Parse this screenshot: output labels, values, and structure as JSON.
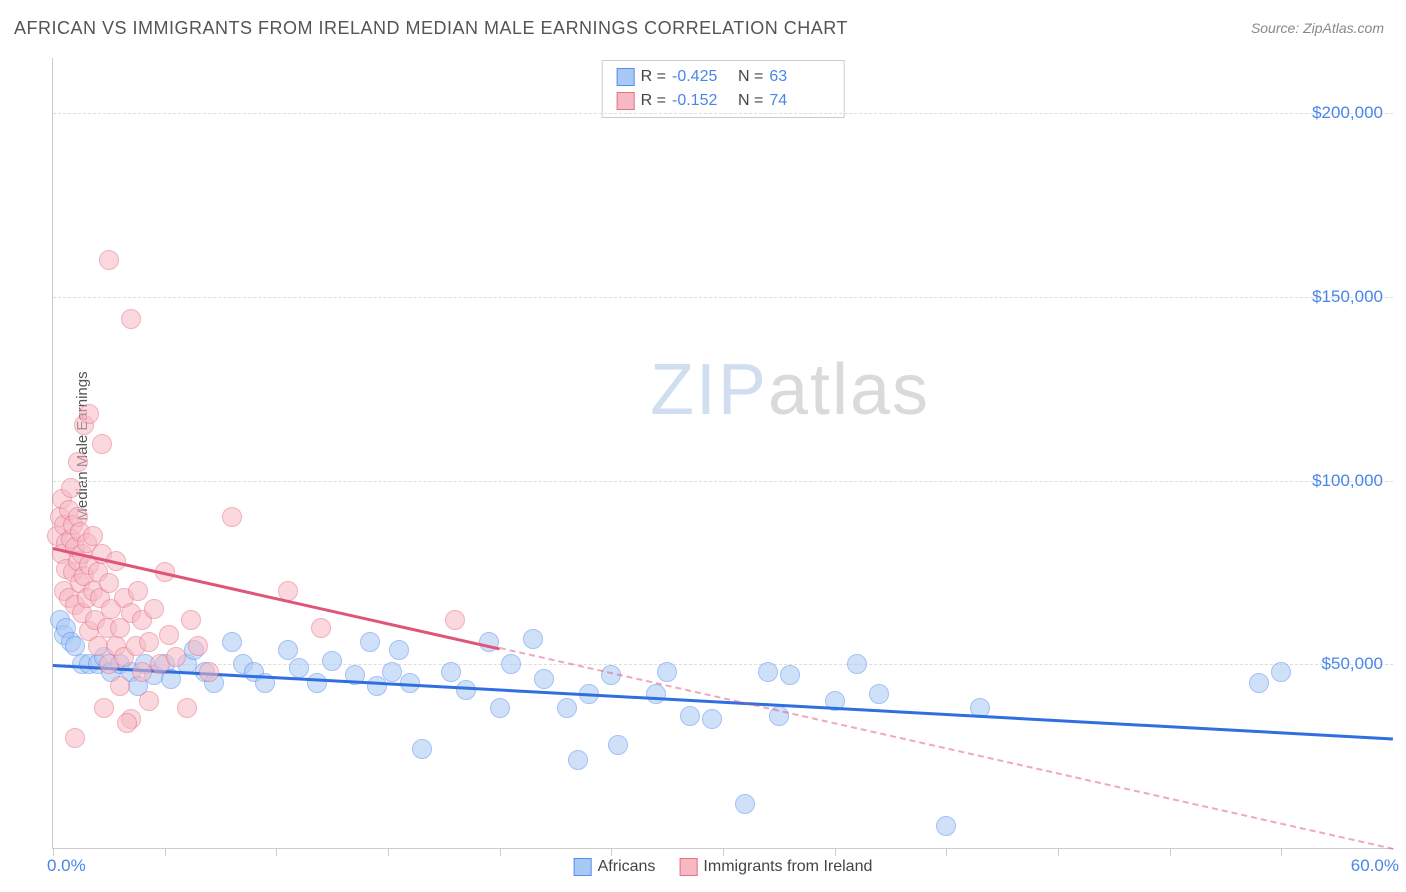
{
  "title": "AFRICAN VS IMMIGRANTS FROM IRELAND MEDIAN MALE EARNINGS CORRELATION CHART",
  "source": "Source: ZipAtlas.com",
  "ylabel": "Median Male Earnings",
  "watermark": {
    "part1": "ZIP",
    "part2": "atlas"
  },
  "chart": {
    "type": "scatter",
    "xlim": [
      0,
      60
    ],
    "ylim": [
      0,
      215000
    ],
    "x_tick_positions": [
      0,
      5,
      10,
      15,
      20,
      25,
      30,
      35,
      40,
      45,
      50,
      55
    ],
    "x_start_label": "0.0%",
    "x_end_label": "60.0%",
    "y_ticks": [
      {
        "value": 50000,
        "label": "$50,000"
      },
      {
        "value": 100000,
        "label": "$100,000"
      },
      {
        "value": 150000,
        "label": "$150,000"
      },
      {
        "value": 200000,
        "label": "$200,000"
      }
    ],
    "grid_color": "#dddddd",
    "background_color": "#ffffff",
    "point_radius": 9,
    "point_opacity": 0.55,
    "series": [
      {
        "id": "africans",
        "label": "Africans",
        "fill": "#a9c9f5",
        "stroke": "#5b8def",
        "trend_color": "#2f6fe0",
        "R": "-0.425",
        "N": "63",
        "trend": {
          "x1": 0,
          "y1": 50000,
          "x2": 60,
          "y2": 30000,
          "dash_after_x": null
        },
        "points": [
          [
            0.3,
            62000
          ],
          [
            0.5,
            58000
          ],
          [
            0.6,
            60000
          ],
          [
            0.8,
            56000
          ],
          [
            1.0,
            55000
          ],
          [
            1.3,
            50000
          ],
          [
            1.6,
            50000
          ],
          [
            2.0,
            50000
          ],
          [
            2.3,
            52000
          ],
          [
            2.6,
            48000
          ],
          [
            3.0,
            50000
          ],
          [
            3.5,
            48000
          ],
          [
            3.8,
            44000
          ],
          [
            4.1,
            50000
          ],
          [
            4.5,
            47000
          ],
          [
            5.0,
            50000
          ],
          [
            5.3,
            46000
          ],
          [
            6.0,
            50000
          ],
          [
            6.3,
            54000
          ],
          [
            6.8,
            48000
          ],
          [
            7.2,
            45000
          ],
          [
            8.0,
            56000
          ],
          [
            8.5,
            50000
          ],
          [
            9.0,
            48000
          ],
          [
            9.5,
            45000
          ],
          [
            10.5,
            54000
          ],
          [
            11.0,
            49000
          ],
          [
            11.8,
            45000
          ],
          [
            12.5,
            51000
          ],
          [
            13.5,
            47000
          ],
          [
            14.2,
            56000
          ],
          [
            14.5,
            44000
          ],
          [
            15.2,
            48000
          ],
          [
            15.5,
            54000
          ],
          [
            16.0,
            45000
          ],
          [
            16.5,
            27000
          ],
          [
            17.8,
            48000
          ],
          [
            18.5,
            43000
          ],
          [
            19.5,
            56000
          ],
          [
            20.5,
            50000
          ],
          [
            21.5,
            57000
          ],
          [
            22.0,
            46000
          ],
          [
            23.0,
            38000
          ],
          [
            23.5,
            24000
          ],
          [
            25.0,
            47000
          ],
          [
            25.3,
            28000
          ],
          [
            27.0,
            42000
          ],
          [
            27.5,
            48000
          ],
          [
            28.5,
            36000
          ],
          [
            29.5,
            35000
          ],
          [
            31.0,
            12000
          ],
          [
            32.0,
            48000
          ],
          [
            32.5,
            36000
          ],
          [
            33.0,
            47000
          ],
          [
            35.0,
            40000
          ],
          [
            36.0,
            50000
          ],
          [
            37.0,
            42000
          ],
          [
            40.0,
            6000
          ],
          [
            41.5,
            38000
          ],
          [
            54.0,
            45000
          ],
          [
            55.0,
            48000
          ],
          [
            24.0,
            42000
          ],
          [
            20.0,
            38000
          ]
        ]
      },
      {
        "id": "ireland",
        "label": "Immigrants from Ireland",
        "fill": "#f6b9c4",
        "stroke": "#e86f88",
        "trend_color": "#e05577",
        "R": "-0.152",
        "N": "74",
        "trend": {
          "x1": 0,
          "y1": 82000,
          "x2": 60,
          "y2": 0,
          "dash_after_x": 20
        },
        "points": [
          [
            0.2,
            85000
          ],
          [
            0.3,
            90000
          ],
          [
            0.4,
            80000
          ],
          [
            0.4,
            95000
          ],
          [
            0.5,
            70000
          ],
          [
            0.5,
            88000
          ],
          [
            0.6,
            83000
          ],
          [
            0.6,
            76000
          ],
          [
            0.7,
            92000
          ],
          [
            0.7,
            68000
          ],
          [
            0.8,
            84000
          ],
          [
            0.8,
            98000
          ],
          [
            0.9,
            75000
          ],
          [
            0.9,
            88000
          ],
          [
            1.0,
            82000
          ],
          [
            1.0,
            66000
          ],
          [
            1.1,
            78000
          ],
          [
            1.1,
            90000
          ],
          [
            1.2,
            72000
          ],
          [
            1.2,
            86000
          ],
          [
            1.3,
            80000
          ],
          [
            1.3,
            64000
          ],
          [
            1.4,
            74000
          ],
          [
            1.5,
            68000
          ],
          [
            1.5,
            83000
          ],
          [
            1.6,
            59000
          ],
          [
            1.6,
            77000
          ],
          [
            1.8,
            70000
          ],
          [
            1.8,
            85000
          ],
          [
            1.9,
            62000
          ],
          [
            2.0,
            75000
          ],
          [
            2.0,
            55000
          ],
          [
            2.1,
            68000
          ],
          [
            2.2,
            80000
          ],
          [
            2.3,
            38000
          ],
          [
            2.4,
            60000
          ],
          [
            2.5,
            72000
          ],
          [
            2.5,
            50000
          ],
          [
            2.6,
            65000
          ],
          [
            2.8,
            55000
          ],
          [
            2.8,
            78000
          ],
          [
            3.0,
            60000
          ],
          [
            3.0,
            44000
          ],
          [
            3.2,
            68000
          ],
          [
            3.2,
            52000
          ],
          [
            3.5,
            64000
          ],
          [
            3.5,
            35000
          ],
          [
            3.7,
            55000
          ],
          [
            3.8,
            70000
          ],
          [
            4.0,
            48000
          ],
          [
            4.0,
            62000
          ],
          [
            4.3,
            56000
          ],
          [
            4.3,
            40000
          ],
          [
            4.5,
            65000
          ],
          [
            4.8,
            50000
          ],
          [
            5.0,
            75000
          ],
          [
            5.2,
            58000
          ],
          [
            5.5,
            52000
          ],
          [
            6.0,
            38000
          ],
          [
            6.2,
            62000
          ],
          [
            6.5,
            55000
          ],
          [
            7.0,
            48000
          ],
          [
            8.0,
            90000
          ],
          [
            10.5,
            70000
          ],
          [
            12.0,
            60000
          ],
          [
            18.0,
            62000
          ],
          [
            1.1,
            105000
          ],
          [
            1.4,
            115000
          ],
          [
            1.6,
            118000
          ],
          [
            3.5,
            144000
          ],
          [
            2.5,
            160000
          ],
          [
            2.2,
            110000
          ],
          [
            1.0,
            30000
          ],
          [
            3.3,
            34000
          ]
        ]
      }
    ],
    "legend_top": {
      "R_label": "R =",
      "N_label": "N ="
    }
  }
}
